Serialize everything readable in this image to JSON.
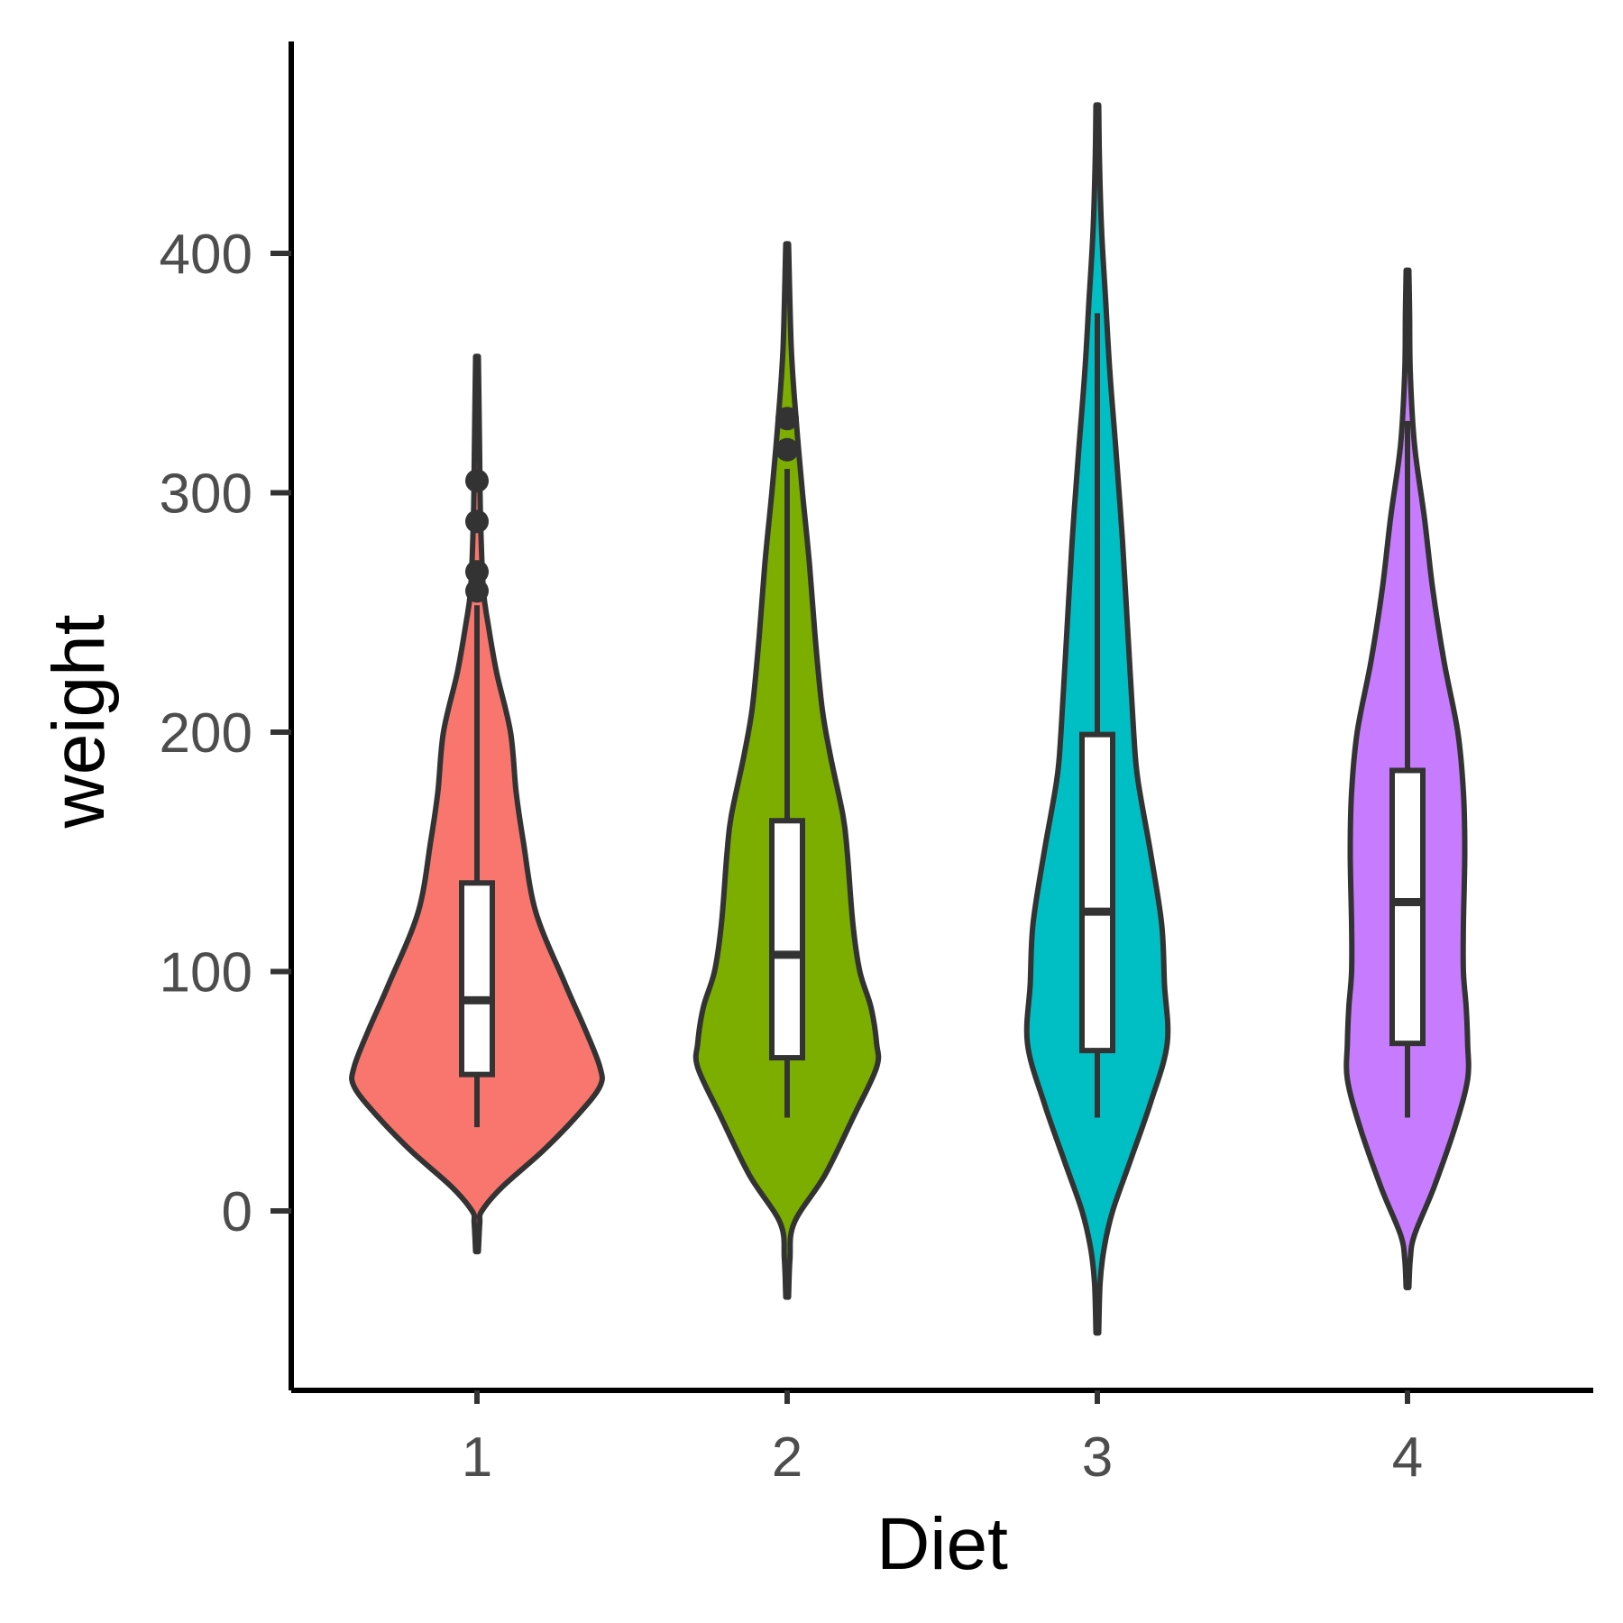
{
  "chart_data": {
    "type": "violin",
    "title": "",
    "xlabel": "Diet",
    "ylabel": "weight",
    "categories": [
      "1",
      "2",
      "3",
      "4"
    ],
    "ylim": [
      -75,
      490
    ],
    "yticks": [
      0,
      100,
      200,
      300,
      400
    ],
    "grid": false,
    "legend": "none",
    "colors": [
      "#F8766D",
      "#7CAE00",
      "#00BFC4",
      "#C77CFF"
    ],
    "groups": [
      {
        "name": "1",
        "color": "#F8766D",
        "box": {
          "lower_whisker": 35,
          "q1": 57,
          "median": 88,
          "q3": 137,
          "upper_whisker": 253
        },
        "outliers": [
          259,
          267,
          288,
          305
        ],
        "violin_range": [
          -17,
          357
        ],
        "density": [
          [
            -17,
            0.01
          ],
          [
            -5,
            0.02
          ],
          [
            0,
            0.035
          ],
          [
            10,
            0.18
          ],
          [
            25,
            0.47
          ],
          [
            40,
            0.72
          ],
          [
            52,
            0.88
          ],
          [
            60,
            0.88
          ],
          [
            75,
            0.78
          ],
          [
            95,
            0.63
          ],
          [
            125,
            0.42
          ],
          [
            155,
            0.33
          ],
          [
            175,
            0.28
          ],
          [
            200,
            0.24
          ],
          [
            225,
            0.14
          ],
          [
            245,
            0.08
          ],
          [
            260,
            0.045
          ],
          [
            290,
            0.025
          ],
          [
            320,
            0.018
          ],
          [
            357,
            0.01
          ]
        ]
      },
      {
        "name": "2",
        "color": "#7CAE00",
        "box": {
          "lower_whisker": 39,
          "q1": 64,
          "median": 107,
          "q3": 163,
          "upper_whisker": 310
        },
        "outliers": [
          318,
          331
        ],
        "violin_range": [
          -36,
          404
        ],
        "density": [
          [
            -36,
            0.01
          ],
          [
            -20,
            0.02
          ],
          [
            -5,
            0.05
          ],
          [
            15,
            0.27
          ],
          [
            40,
            0.48
          ],
          [
            60,
            0.64
          ],
          [
            70,
            0.64
          ],
          [
            85,
            0.6
          ],
          [
            100,
            0.52
          ],
          [
            120,
            0.47
          ],
          [
            150,
            0.43
          ],
          [
            165,
            0.4
          ],
          [
            190,
            0.31
          ],
          [
            210,
            0.25
          ],
          [
            240,
            0.2
          ],
          [
            270,
            0.16
          ],
          [
            300,
            0.11
          ],
          [
            330,
            0.065
          ],
          [
            360,
            0.03
          ],
          [
            404,
            0.01
          ]
        ]
      },
      {
        "name": "3",
        "color": "#00BFC4",
        "box": {
          "lower_whisker": 39,
          "q1": 67,
          "median": 125,
          "q3": 199,
          "upper_whisker": 375
        },
        "outliers": [],
        "violin_range": [
          -51,
          462
        ],
        "density": [
          [
            -51,
            0.01
          ],
          [
            -30,
            0.02
          ],
          [
            -15,
            0.05
          ],
          [
            0,
            0.11
          ],
          [
            20,
            0.23
          ],
          [
            45,
            0.38
          ],
          [
            70,
            0.5
          ],
          [
            95,
            0.48
          ],
          [
            120,
            0.46
          ],
          [
            150,
            0.38
          ],
          [
            180,
            0.29
          ],
          [
            200,
            0.26
          ],
          [
            240,
            0.22
          ],
          [
            280,
            0.18
          ],
          [
            320,
            0.13
          ],
          [
            350,
            0.09
          ],
          [
            380,
            0.06
          ],
          [
            410,
            0.03
          ],
          [
            440,
            0.015
          ],
          [
            462,
            0.01
          ]
        ]
      },
      {
        "name": "4",
        "color": "#C77CFF",
        "box": {
          "lower_whisker": 39,
          "q1": 70,
          "median": 129,
          "q3": 184,
          "upper_whisker": 330
        },
        "outliers": [],
        "violin_range": [
          -32,
          393
        ],
        "density": [
          [
            -32,
            0.01
          ],
          [
            -20,
            0.02
          ],
          [
            -10,
            0.05
          ],
          [
            10,
            0.19
          ],
          [
            35,
            0.34
          ],
          [
            55,
            0.43
          ],
          [
            70,
            0.43
          ],
          [
            85,
            0.42
          ],
          [
            100,
            0.4
          ],
          [
            120,
            0.4
          ],
          [
            150,
            0.41
          ],
          [
            175,
            0.4
          ],
          [
            200,
            0.36
          ],
          [
            230,
            0.26
          ],
          [
            260,
            0.18
          ],
          [
            290,
            0.12
          ],
          [
            320,
            0.05
          ],
          [
            350,
            0.02
          ],
          [
            375,
            0.015
          ],
          [
            393,
            0.01
          ]
        ]
      }
    ]
  }
}
